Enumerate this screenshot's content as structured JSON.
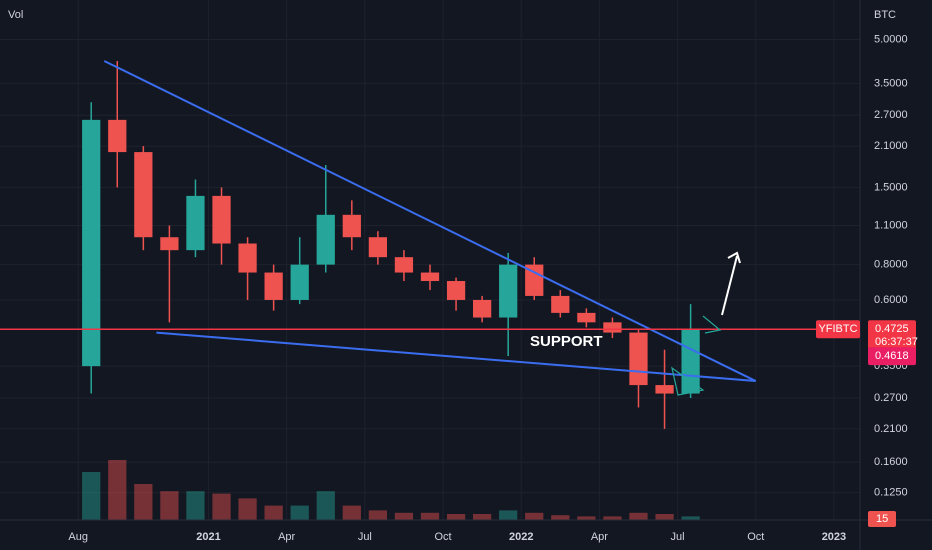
{
  "chart_data": {
    "type": "candlestick",
    "symbol": "YFIBTC",
    "y_axis_label": "BTC",
    "volume_label": "Vol",
    "log_scale": true,
    "x": [
      "2020-08",
      "2020-09",
      "2020-10",
      "2020-11",
      "2020-12",
      "2021-01",
      "2021-02",
      "2021-03",
      "2021-04",
      "2021-05",
      "2021-06",
      "2021-07",
      "2021-08",
      "2021-09",
      "2021-10",
      "2021-11",
      "2021-12",
      "2022-01",
      "2022-02",
      "2022-03",
      "2022-04",
      "2022-05",
      "2022-06",
      "2022-07"
    ],
    "open": [
      0.35,
      2.6,
      2.0,
      1.0,
      0.9,
      1.4,
      0.95,
      0.75,
      0.6,
      0.8,
      1.2,
      1.0,
      0.85,
      0.75,
      0.7,
      0.6,
      0.52,
      0.8,
      0.62,
      0.54,
      0.5,
      0.46,
      0.3,
      0.28
    ],
    "high": [
      3.0,
      4.2,
      2.1,
      1.1,
      1.6,
      1.5,
      1.0,
      0.8,
      1.0,
      1.8,
      1.35,
      1.05,
      0.9,
      0.8,
      0.72,
      0.62,
      0.88,
      0.85,
      0.65,
      0.56,
      0.52,
      0.47,
      0.4,
      0.58
    ],
    "low": [
      0.28,
      1.5,
      0.9,
      0.5,
      0.85,
      0.8,
      0.6,
      0.55,
      0.58,
      0.75,
      0.9,
      0.8,
      0.7,
      0.65,
      0.55,
      0.5,
      0.38,
      0.6,
      0.52,
      0.48,
      0.44,
      0.25,
      0.21,
      0.27
    ],
    "close": [
      2.6,
      2.0,
      1.0,
      0.9,
      1.4,
      0.95,
      0.75,
      0.6,
      0.8,
      1.2,
      1.0,
      0.85,
      0.75,
      0.7,
      0.6,
      0.52,
      0.8,
      0.62,
      0.54,
      0.5,
      0.46,
      0.3,
      0.28,
      0.4725
    ],
    "volume": [
      200,
      250,
      150,
      120,
      120,
      110,
      90,
      60,
      60,
      120,
      60,
      40,
      30,
      30,
      25,
      25,
      40,
      30,
      20,
      15,
      15,
      30,
      25,
      15
    ],
    "up_color": "#26a69a",
    "down_color": "#ef5350",
    "xlim": [
      "2020-05",
      "2023-02"
    ],
    "xticks": [
      {
        "value": "2020-08",
        "label": "Aug"
      },
      {
        "value": "2021-01",
        "label": "2021"
      },
      {
        "value": "2021-04",
        "label": "Apr"
      },
      {
        "value": "2021-07",
        "label": "Jul"
      },
      {
        "value": "2021-10",
        "label": "Oct"
      },
      {
        "value": "2022-01",
        "label": "2022"
      },
      {
        "value": "2022-04",
        "label": "Apr"
      },
      {
        "value": "2022-07",
        "label": "Jul"
      },
      {
        "value": "2022-10",
        "label": "Oct"
      },
      {
        "value": "2023-01",
        "label": "2023"
      }
    ],
    "ylim": [
      0.1,
      6.9
    ],
    "yticks": [
      {
        "value": 5,
        "label": "5.0000"
      },
      {
        "value": 3.5,
        "label": "3.5000"
      },
      {
        "value": 2.7,
        "label": "2.7000"
      },
      {
        "value": 2.1,
        "label": "2.1000"
      },
      {
        "value": 1.5,
        "label": "1.5000"
      },
      {
        "value": 1.1,
        "label": "1.1000"
      },
      {
        "value": 0.8,
        "label": "0.8000"
      },
      {
        "value": 0.6,
        "label": "0.6000"
      },
      {
        "value": 0.35,
        "label": "0.3500"
      },
      {
        "value": 0.27,
        "label": "0.2700"
      },
      {
        "value": 0.21,
        "label": "0.2100"
      },
      {
        "value": 0.16,
        "label": "0.1600"
      },
      {
        "value": 0.125,
        "label": "0.1250"
      }
    ],
    "trendlines": [
      {
        "color": "#3a6df0",
        "x": [
          "2020-09",
          "2022-10"
        ],
        "y": [
          4.2,
          0.31
        ]
      },
      {
        "color": "#3a6df0",
        "x": [
          "2020-11",
          "2022-10"
        ],
        "y": [
          0.46,
          0.31
        ]
      }
    ],
    "annotation": "SUPPORT",
    "price_line": {
      "value": 0.4725,
      "label": "0.4725",
      "countdown": "06:37:37",
      "color": "#f23645"
    },
    "second_price": {
      "value": 0.4618,
      "label": "0.4618"
    }
  }
}
